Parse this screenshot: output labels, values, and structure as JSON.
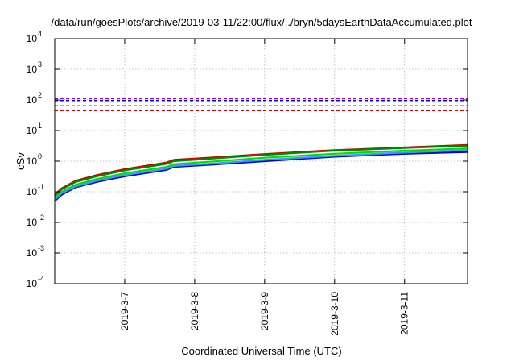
{
  "chart_data": {
    "type": "line",
    "title": "/data/run/goesPlots/archive/2019-03-11/22:00/flux/../bryn/5daysEarthDataAccumulated.plot",
    "xlabel": "Coordinated Universal Time (UTC)",
    "ylabel": "cSv",
    "xlim": [
      0,
      5.9
    ],
    "x_tick_values": [
      1,
      2,
      3,
      4,
      5
    ],
    "x_tick_labels": [
      "2019-3-7",
      "2019-3-8",
      "2019-3-9",
      "2019-3-10",
      "2019-3-11"
    ],
    "y_scale": "log",
    "ylim": [
      0.0001,
      10000
    ],
    "y_ticks": [
      {
        "base": "10",
        "exp": "-4",
        "value": 0.0001
      },
      {
        "base": "10",
        "exp": "-3",
        "value": 0.001
      },
      {
        "base": "10",
        "exp": "-2",
        "value": 0.01
      },
      {
        "base": "10",
        "exp": "-1",
        "value": 0.1
      },
      {
        "base": "10",
        "exp": "0",
        "value": 1
      },
      {
        "base": "10",
        "exp": "1",
        "value": 10
      },
      {
        "base": "10",
        "exp": "2",
        "value": 100
      },
      {
        "base": "10",
        "exp": "3",
        "value": 1000
      },
      {
        "base": "10",
        "exp": "4",
        "value": 10000
      }
    ],
    "grid": true,
    "series": [
      {
        "color": "#cc0000",
        "style": "solid",
        "x": [
          0,
          0.1,
          0.3,
          0.6,
          1.0,
          1.6,
          1.7,
          2.2,
          3.0,
          4.0,
          5.0,
          5.9
        ],
        "values": [
          0.08,
          0.13,
          0.23,
          0.35,
          0.55,
          0.9,
          1.1,
          1.3,
          1.7,
          2.3,
          2.8,
          3.4
        ]
      },
      {
        "color": "#008800",
        "style": "solid",
        "x": [
          0,
          0.1,
          0.3,
          0.6,
          1.0,
          1.6,
          1.7,
          2.2,
          3.0,
          4.0,
          5.0,
          5.9
        ],
        "values": [
          0.075,
          0.12,
          0.21,
          0.32,
          0.5,
          0.82,
          1.0,
          1.2,
          1.6,
          2.2,
          2.7,
          3.2
        ]
      },
      {
        "color": "#00dd00",
        "style": "solid",
        "x": [
          0,
          0.1,
          0.3,
          0.6,
          1.0,
          1.6,
          1.7,
          2.2,
          3.0,
          4.0,
          5.0,
          5.9
        ],
        "values": [
          0.065,
          0.1,
          0.17,
          0.26,
          0.4,
          0.65,
          0.8,
          0.95,
          1.3,
          1.75,
          2.2,
          2.6
        ]
      },
      {
        "color": "#0000cc",
        "style": "solid",
        "x": [
          0,
          0.1,
          0.3,
          0.6,
          1.0,
          1.6,
          1.7,
          2.2,
          3.0,
          4.0,
          5.0,
          5.9
        ],
        "values": [
          0.05,
          0.08,
          0.14,
          0.21,
          0.32,
          0.52,
          0.65,
          0.76,
          1.0,
          1.4,
          1.75,
          2.0
        ]
      },
      {
        "color": "#3399ff",
        "style": "solid",
        "x": [
          0,
          0.1,
          0.3,
          0.6,
          1.0,
          1.6,
          1.7,
          2.2,
          3.0,
          4.0,
          5.0,
          5.9
        ],
        "values": [
          0.055,
          0.09,
          0.15,
          0.23,
          0.35,
          0.57,
          0.7,
          0.82,
          1.1,
          1.5,
          1.9,
          2.3
        ]
      },
      {
        "color": "#9900cc",
        "style": "dashed",
        "x": [
          0,
          5.9
        ],
        "values": [
          110,
          110
        ]
      },
      {
        "color": "#0000cc",
        "style": "dashed",
        "x": [
          0,
          5.9
        ],
        "values": [
          95,
          95
        ]
      },
      {
        "color": "#00cc00",
        "style": "dashed",
        "x": [
          0,
          5.9
        ],
        "values": [
          65,
          65
        ]
      },
      {
        "color": "#cc0000",
        "style": "dashed",
        "x": [
          0,
          5.9
        ],
        "values": [
          45,
          45
        ]
      }
    ]
  }
}
